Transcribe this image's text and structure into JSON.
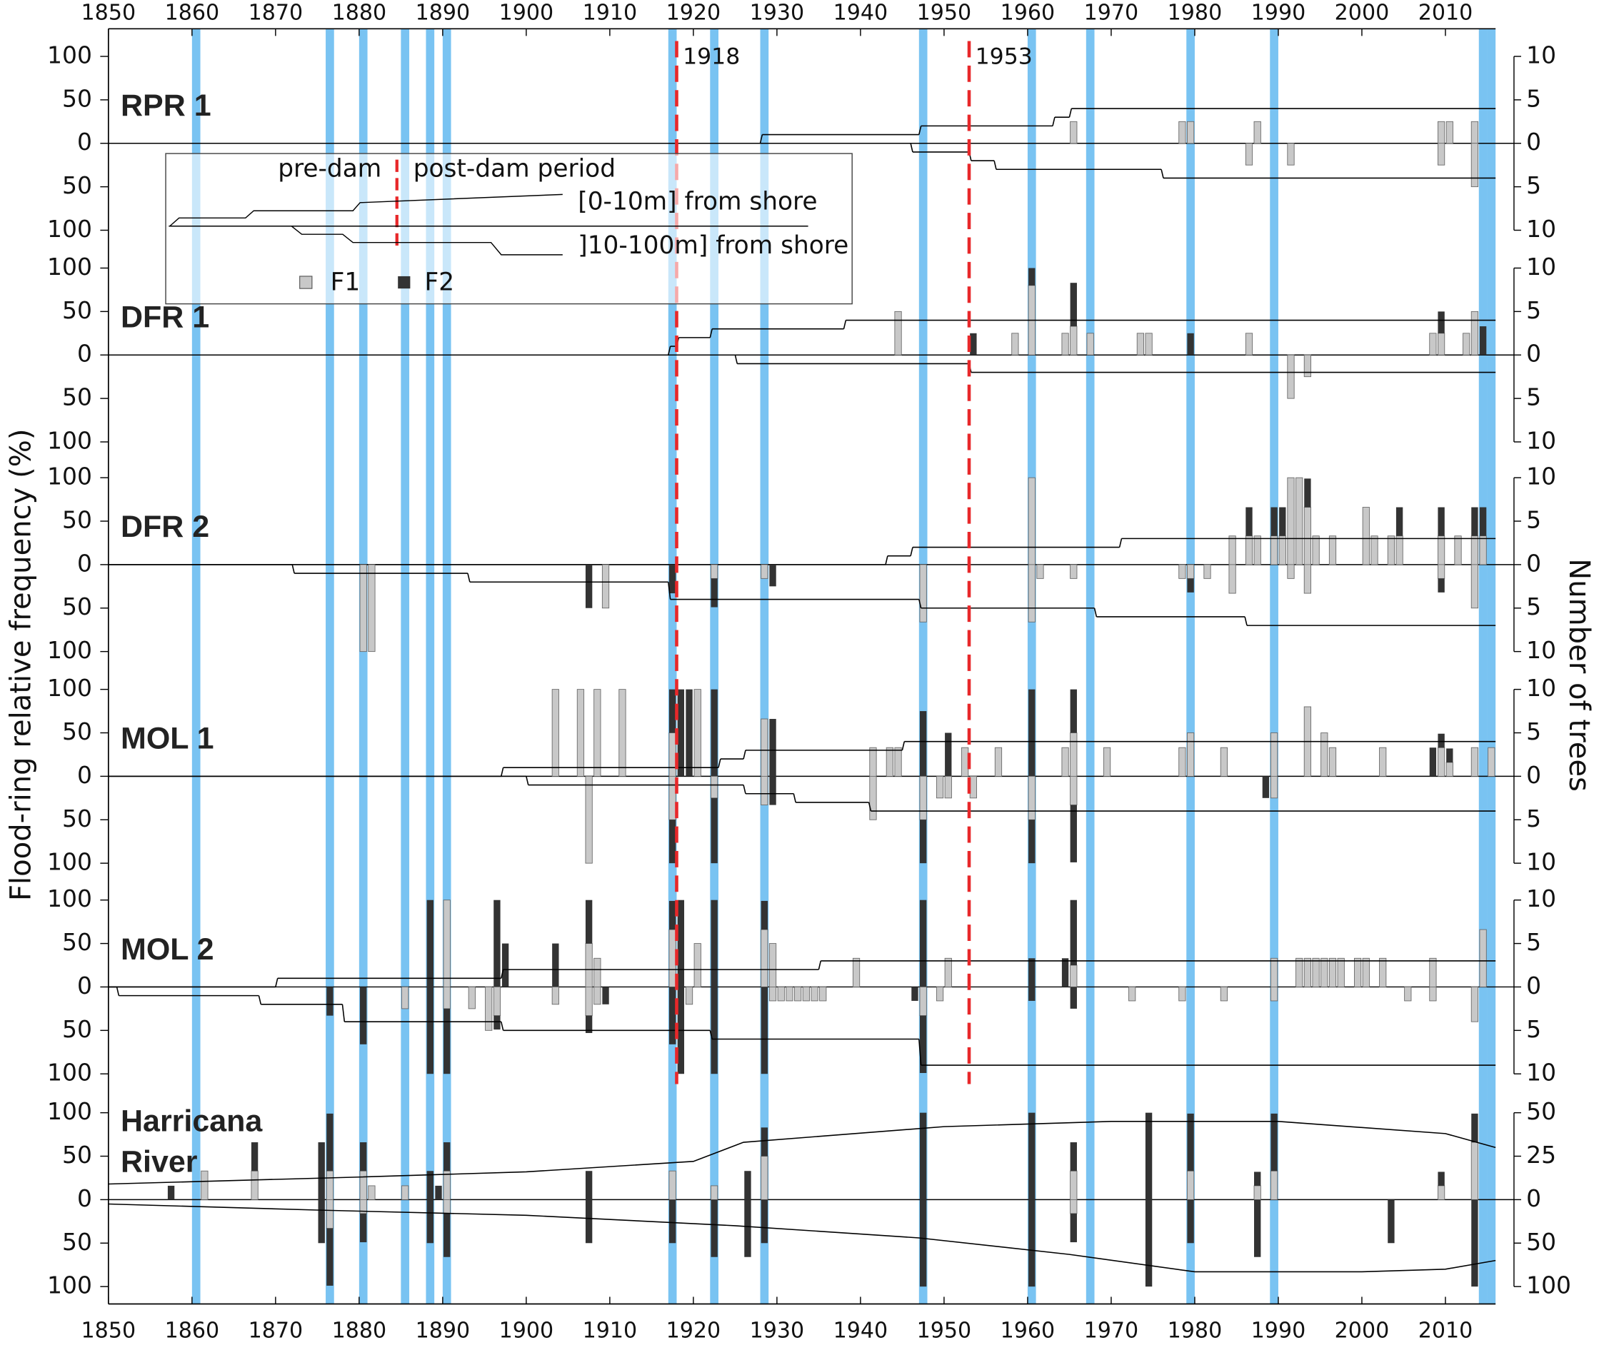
{
  "figure": {
    "ylabel": "Flood-ring relative frequency (%)",
    "y2label": "Number of trees",
    "xlim": [
      1850,
      2016
    ],
    "xticks": [
      1850,
      1860,
      1870,
      1880,
      1890,
      1900,
      1910,
      1920,
      1930,
      1940,
      1950,
      1960,
      1970,
      1980,
      1990,
      2000,
      2010
    ],
    "flood_years": [
      1860,
      1876,
      1880,
      1885,
      1888,
      1890,
      1917,
      1922,
      1928,
      1947,
      1960,
      1967,
      1979,
      1989,
      2014,
      2015
    ],
    "flood_color": "#79c3f2",
    "dam_lines": [
      1918,
      1953
    ],
    "dam_color": "#e8282a",
    "legend": {
      "pre": "pre-dam",
      "post": "post-dam period",
      "near": "[0-10m] from shore",
      "far": "]10-100m] from shore",
      "series": [
        {
          "name": "F1",
          "color": "#c8c8c8"
        },
        {
          "name": "F2",
          "color": "#333333"
        }
      ]
    }
  },
  "chart_data": [
    {
      "type": "bar",
      "title": "RPR 1",
      "ylim": [
        0,
        100
      ],
      "yticks": [
        0,
        50,
        100
      ],
      "y2lim_upper": [
        0,
        10
      ],
      "y2ticks_upper": [
        0,
        5,
        10
      ],
      "y2lim_lower": [
        0,
        10
      ],
      "y2ticks_lower": [
        0,
        5,
        10
      ],
      "trees_step": true,
      "upper": {
        "x": [
          1965,
          1978,
          1979,
          1987,
          2009,
          2010,
          2013
        ],
        "f1": [
          25,
          25,
          25,
          25,
          25,
          25,
          25
        ],
        "f2": [
          0,
          0,
          0,
          0,
          0,
          0,
          0
        ]
      },
      "lower": {
        "x": [
          1986,
          1991,
          2009,
          2013
        ],
        "f1": [
          25,
          25,
          25,
          50
        ],
        "f2": [
          0,
          0,
          0,
          0
        ]
      },
      "trees_upper": {
        "x": [
          1850,
          1928,
          1947,
          1963,
          1965
        ],
        "values": [
          0,
          1,
          2,
          3,
          4
        ]
      },
      "trees_lower": {
        "x": [
          1850,
          1946,
          1953,
          1956,
          1976
        ],
        "values": [
          0,
          1,
          2,
          3,
          4
        ]
      }
    },
    {
      "type": "bar",
      "title": "DFR 1",
      "ylim": [
        0,
        100
      ],
      "yticks": [
        0,
        50,
        100
      ],
      "y2lim_upper": [
        0,
        10
      ],
      "y2ticks_upper": [
        0,
        5,
        10
      ],
      "y2lim_lower": [
        0,
        10
      ],
      "y2ticks_lower": [
        0,
        5,
        10
      ],
      "trees_step": true,
      "upper": {
        "x": [
          1944,
          1953,
          1958,
          1960,
          1964,
          1965,
          1967,
          1973,
          1974,
          1979,
          1986,
          2008,
          2009,
          2012,
          2013,
          2014
        ],
        "f1": [
          50,
          0,
          25,
          80,
          25,
          33,
          25,
          25,
          25,
          0,
          25,
          25,
          25,
          25,
          50,
          0
        ],
        "f2": [
          0,
          25,
          0,
          20,
          0,
          50,
          0,
          0,
          0,
          25,
          0,
          0,
          25,
          0,
          0,
          33
        ]
      },
      "lower": {
        "x": [
          1991,
          1993
        ],
        "f1": [
          50,
          25
        ],
        "f2": [
          0,
          0
        ]
      },
      "trees_upper": {
        "x": [
          1850,
          1917,
          1918,
          1922,
          1938
        ],
        "values": [
          0,
          1,
          2,
          3,
          4
        ]
      },
      "trees_lower": {
        "x": [
          1850,
          1925,
          1953
        ],
        "values": [
          0,
          1,
          2
        ]
      }
    },
    {
      "type": "bar",
      "title": "DFR 2",
      "ylim": [
        0,
        100
      ],
      "yticks": [
        0,
        50,
        100
      ],
      "y2lim_upper": [
        0,
        10
      ],
      "y2ticks_upper": [
        0,
        5,
        10
      ],
      "y2lim_lower": [
        0,
        10
      ],
      "y2ticks_lower": [
        0,
        5,
        10
      ],
      "trees_step": true,
      "upper": {
        "x": [
          1960,
          1984,
          1986,
          1987,
          1989,
          1990,
          1991,
          1992,
          1993,
          1994,
          1996,
          2000,
          2001,
          2003,
          2004,
          2009,
          2011,
          2013,
          2014
        ],
        "f1": [
          100,
          33,
          33,
          33,
          33,
          33,
          100,
          100,
          66,
          33,
          33,
          66,
          33,
          33,
          33,
          33,
          33,
          33,
          33
        ],
        "f2": [
          0,
          0,
          33,
          0,
          33,
          33,
          0,
          0,
          33,
          0,
          0,
          0,
          0,
          0,
          33,
          33,
          0,
          33,
          33
        ]
      },
      "lower": {
        "x": [
          1880,
          1881,
          1907,
          1909,
          1917,
          1922,
          1928,
          1929,
          1947,
          1960,
          1961,
          1965,
          1978,
          1979,
          1981,
          1984,
          1991,
          1993,
          2009,
          2013
        ],
        "f1": [
          100,
          100,
          0,
          50,
          0,
          16,
          16,
          0,
          66,
          66,
          16,
          16,
          16,
          16,
          16,
          33,
          16,
          33,
          16,
          50
        ],
        "f2": [
          0,
          0,
          50,
          0,
          33,
          33,
          0,
          25,
          0,
          0,
          0,
          0,
          0,
          16,
          0,
          0,
          0,
          0,
          16,
          0
        ]
      },
      "trees_upper": {
        "x": [
          1850,
          1943,
          1946,
          1971
        ],
        "values": [
          0,
          1,
          2,
          3
        ]
      },
      "trees_lower": {
        "x": [
          1850,
          1872,
          1893,
          1917,
          1947,
          1968,
          1986
        ],
        "values": [
          0,
          1,
          2,
          4,
          5,
          6,
          7
        ]
      }
    },
    {
      "type": "bar",
      "title": "MOL 1",
      "ylim": [
        0,
        100
      ],
      "yticks": [
        0,
        50,
        100
      ],
      "y2lim_upper": [
        0,
        10
      ],
      "y2ticks_upper": [
        0,
        5,
        10
      ],
      "y2lim_lower": [
        0,
        10
      ],
      "y2ticks_lower": [
        0,
        5,
        10
      ],
      "trees_step": true,
      "upper": {
        "x": [
          1903,
          1906,
          1908,
          1911,
          1917,
          1918,
          1919,
          1920,
          1922,
          1928,
          1929,
          1941,
          1943,
          1944,
          1947,
          1950,
          1952,
          1956,
          1960,
          1964,
          1965,
          1969,
          1978,
          1979,
          1983,
          1989,
          1993,
          1995,
          1996,
          2002,
          2008,
          2009,
          2010,
          2013,
          2015
        ],
        "f1": [
          100,
          100,
          100,
          100,
          50,
          0,
          0,
          100,
          0,
          66,
          0,
          33,
          33,
          33,
          0,
          0,
          33,
          33,
          0,
          33,
          50,
          33,
          33,
          50,
          33,
          50,
          80,
          50,
          33,
          33,
          0,
          33,
          16,
          33,
          33
        ],
        "f2": [
          0,
          0,
          0,
          0,
          50,
          100,
          100,
          0,
          100,
          0,
          66,
          0,
          0,
          0,
          75,
          50,
          0,
          0,
          100,
          0,
          50,
          0,
          0,
          0,
          0,
          0,
          0,
          0,
          0,
          0,
          33,
          16,
          16,
          0,
          0
        ]
      },
      "lower": {
        "x": [
          1907,
          1917,
          1922,
          1928,
          1929,
          1941,
          1947,
          1949,
          1950,
          1953,
          1960,
          1965,
          1988,
          1989
        ],
        "f1": [
          100,
          50,
          25,
          33,
          0,
          50,
          50,
          25,
          25,
          25,
          50,
          33,
          0,
          25
        ],
        "f2": [
          0,
          50,
          75,
          0,
          33,
          0,
          50,
          0,
          0,
          0,
          50,
          66,
          25,
          0
        ]
      },
      "trees_upper": {
        "x": [
          1850,
          1897,
          1923,
          1926,
          1945
        ],
        "values": [
          0,
          1,
          2,
          3,
          4
        ]
      },
      "trees_lower": {
        "x": [
          1850,
          1900,
          1926,
          1932,
          1941
        ],
        "values": [
          0,
          1,
          2,
          3,
          4
        ]
      }
    },
    {
      "type": "bar",
      "title": "MOL 2",
      "ylim": [
        0,
        100
      ],
      "yticks": [
        0,
        50,
        100
      ],
      "y2lim_upper": [
        0,
        10
      ],
      "y2ticks_upper": [
        0,
        5,
        10
      ],
      "y2lim_lower": [
        0,
        10
      ],
      "y2ticks_lower": [
        0,
        5,
        10
      ],
      "trees_step": true,
      "upper": {
        "x": [
          1888,
          1890,
          1896,
          1897,
          1903,
          1907,
          1908,
          1917,
          1918,
          1920,
          1922,
          1928,
          1929,
          1939,
          1947,
          1950,
          1960,
          1964,
          1965,
          1989,
          1992,
          1993,
          1994,
          1995,
          1996,
          1997,
          1999,
          2000,
          2002,
          2008,
          2014
        ],
        "f1": [
          0,
          100,
          0,
          0,
          0,
          50,
          33,
          66,
          0,
          50,
          0,
          66,
          50,
          33,
          0,
          33,
          0,
          0,
          25,
          33,
          33,
          33,
          33,
          33,
          33,
          33,
          33,
          33,
          33,
          33,
          66
        ],
        "f2": [
          100,
          0,
          100,
          50,
          50,
          50,
          0,
          33,
          100,
          0,
          100,
          33,
          0,
          0,
          100,
          0,
          33,
          33,
          75,
          0,
          0,
          0,
          0,
          0,
          0,
          0,
          0,
          0,
          0,
          0,
          0
        ]
      },
      "lower": {
        "x": [
          1876,
          1880,
          1885,
          1888,
          1890,
          1893,
          1895,
          1896,
          1903,
          1907,
          1908,
          1909,
          1917,
          1918,
          1919,
          1922,
          1928,
          1929,
          1930,
          1931,
          1932,
          1933,
          1934,
          1935,
          1946,
          1947,
          1949,
          1960,
          1965,
          1972,
          1978,
          1983,
          1989,
          2005,
          2008,
          2013
        ],
        "f1": [
          0,
          0,
          25,
          0,
          25,
          25,
          50,
          33,
          20,
          33,
          20,
          0,
          0,
          0,
          20,
          0,
          0,
          16,
          16,
          16,
          16,
          16,
          16,
          16,
          0,
          33,
          16,
          0,
          0,
          16,
          16,
          16,
          16,
          16,
          16,
          40
        ],
        "f2": [
          33,
          66,
          0,
          100,
          75,
          0,
          0,
          16,
          0,
          20,
          0,
          20,
          66,
          100,
          0,
          100,
          100,
          0,
          0,
          0,
          0,
          0,
          0,
          0,
          16,
          66,
          0,
          16,
          25,
          0,
          0,
          0,
          0,
          0,
          0,
          0
        ]
      },
      "trees_upper": {
        "x": [
          1850,
          1870,
          1897,
          1935
        ],
        "values": [
          0,
          1,
          2,
          3
        ]
      },
      "trees_lower": {
        "x": [
          1850,
          1851,
          1868,
          1878,
          1897,
          1922,
          1947
        ],
        "values": [
          0,
          1,
          2,
          4,
          5,
          6,
          9
        ]
      }
    },
    {
      "type": "bar",
      "title": "Harricana River",
      "ylim": [
        0,
        100
      ],
      "yticks": [
        0,
        50,
        100
      ],
      "y2lim_upper": [
        0,
        50
      ],
      "y2ticks_upper": [
        0,
        25,
        50
      ],
      "y2lim_lower": [
        0,
        100
      ],
      "y2ticks_lower": [
        0,
        50,
        100
      ],
      "trees_step": false,
      "upper": {
        "x": [
          1857,
          1861,
          1867,
          1875,
          1876,
          1880,
          1881,
          1885,
          1888,
          1889,
          1890,
          1907,
          1917,
          1922,
          1926,
          1928,
          1947,
          1960,
          1965,
          1974,
          1979,
          1987,
          1989,
          2009,
          2013
        ],
        "f1": [
          0,
          33,
          33,
          0,
          33,
          33,
          16,
          16,
          0,
          0,
          33,
          0,
          33,
          16,
          0,
          50,
          0,
          0,
          33,
          0,
          33,
          16,
          33,
          16,
          66
        ],
        "f2": [
          16,
          0,
          33,
          66,
          66,
          33,
          0,
          0,
          33,
          16,
          33,
          33,
          0,
          0,
          33,
          33,
          100,
          100,
          33,
          100,
          66,
          16,
          66,
          16,
          33
        ]
      },
      "lower": {
        "x": [
          1875,
          1876,
          1880,
          1888,
          1890,
          1907,
          1917,
          1922,
          1926,
          1928,
          1947,
          1960,
          1965,
          1974,
          1979,
          1987,
          2003,
          2013
        ],
        "f1": [
          0,
          33,
          16,
          0,
          16,
          0,
          0,
          0,
          0,
          0,
          0,
          0,
          16,
          0,
          0,
          0,
          0,
          0
        ],
        "f2": [
          50,
          66,
          33,
          50,
          50,
          50,
          50,
          66,
          66,
          50,
          100,
          100,
          33,
          100,
          50,
          66,
          50,
          100
        ]
      },
      "trees_upper": {
        "x": [
          1850,
          1880,
          1900,
          1920,
          1926,
          1950,
          1970,
          1990,
          2010,
          2016
        ],
        "values": [
          9,
          13,
          16,
          22,
          33,
          42,
          45,
          45,
          38,
          30
        ]
      },
      "trees_lower": {
        "x": [
          1850,
          1875,
          1900,
          1925,
          1947,
          1965,
          1980,
          2000,
          2010,
          2016
        ],
        "values": [
          5,
          12,
          18,
          30,
          44,
          63,
          83,
          83,
          80,
          70
        ]
      }
    }
  ]
}
